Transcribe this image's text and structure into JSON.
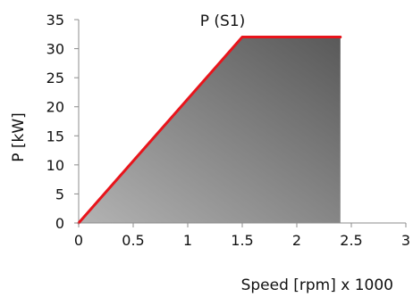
{
  "chart_data": {
    "type": "area",
    "title": "P (S1)",
    "xlabel": "Speed [rpm] x 1000",
    "ylabel": "P [kW]",
    "xlim": [
      0,
      3
    ],
    "ylim": [
      0,
      35
    ],
    "x_ticks": [
      "0",
      "0.5",
      "1",
      "1.5",
      "2",
      "2.5",
      "3"
    ],
    "y_ticks": [
      "0",
      "5",
      "10",
      "15",
      "20",
      "25",
      "30",
      "35"
    ],
    "grid": false,
    "legend": "none",
    "series": [
      {
        "x": [
          0,
          1.5,
          2.4
        ],
        "y": [
          0,
          32,
          32
        ]
      }
    ],
    "colors": {
      "line": "#e8141b",
      "fill_light": "#b3b3b3",
      "fill_dark": "#595959",
      "axis": "#8c8c8c"
    }
  }
}
